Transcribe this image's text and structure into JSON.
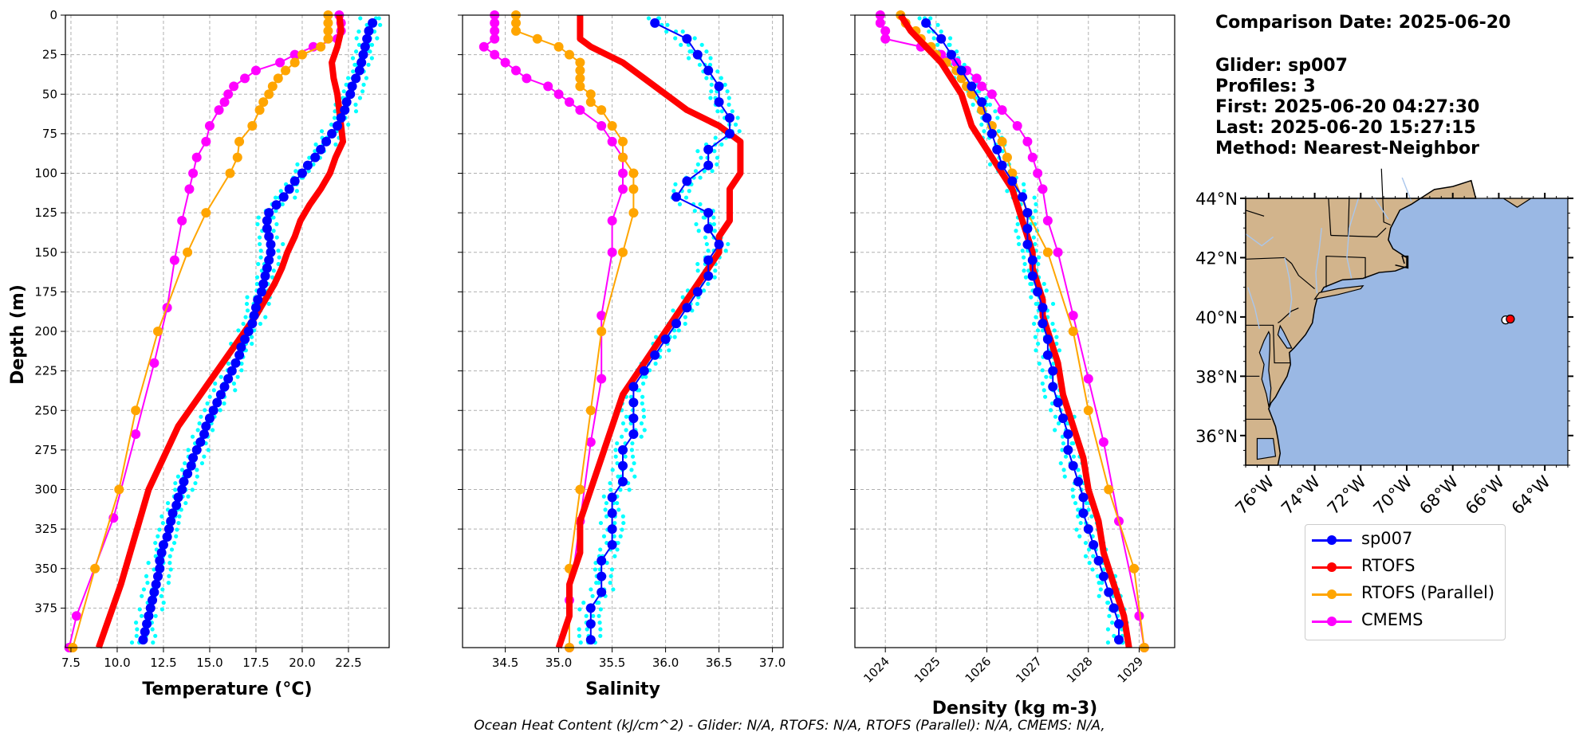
{
  "info": {
    "comparison_date": "Comparison Date: 2025-06-20",
    "glider": "Glider: sp007",
    "profiles": "Profiles: 3",
    "first": "First: 2025-06-20 04:27:30",
    "last": "Last: 2025-06-20 15:27:15",
    "method": "Method: Nearest-Neighbor"
  },
  "footer": "Ocean Heat Content (kJ/cm^2) - Glider: N/A,  RTOFS: N/A,  RTOFS (Parallel): N/A,  CMEMS: N/A,",
  "legend": [
    {
      "label": "sp007",
      "color": "#0000ff"
    },
    {
      "label": "RTOFS",
      "color": "#ff0000"
    },
    {
      "label": "RTOFS (Parallel)",
      "color": "#ffa500"
    },
    {
      "label": "CMEMS",
      "color": "#ff00ff"
    }
  ],
  "colors": {
    "glider": "#0000ff",
    "glider_raw": "#00ffff",
    "rtofs": "#ff0000",
    "rtofs_parallel": "#ffa500",
    "cmems": "#ff00ff",
    "land": "#d2b48c",
    "ocean": "#9ab8e4"
  },
  "chart_data": [
    {
      "type": "line",
      "xlabel": "Temperature (°C)",
      "ylabel": "Depth (m)",
      "xlim": [
        7.2,
        24.7
      ],
      "ylim": [
        400,
        0
      ],
      "xticks": [
        "7.5",
        "10.0",
        "12.5",
        "15.0",
        "17.5",
        "20.0",
        "22.5"
      ],
      "yticks": [
        "0",
        "25",
        "50",
        "75",
        "100",
        "125",
        "150",
        "175",
        "200",
        "225",
        "250",
        "275",
        "300",
        "325",
        "350",
        "375"
      ],
      "grid": true,
      "series": [
        {
          "name": "sp007",
          "depth": [
            5,
            10,
            15,
            20,
            25,
            30,
            35,
            40,
            45,
            50,
            55,
            60,
            65,
            70,
            75,
            80,
            85,
            90,
            95,
            100,
            105,
            110,
            115,
            120,
            125,
            130,
            135,
            140,
            145,
            150,
            155,
            160,
            165,
            170,
            175,
            180,
            185,
            190,
            195,
            200,
            205,
            210,
            215,
            220,
            225,
            230,
            235,
            240,
            245,
            250,
            255,
            260,
            265,
            270,
            275,
            280,
            285,
            290,
            295,
            300,
            305,
            310,
            315,
            320,
            325,
            330,
            335,
            340,
            345,
            350,
            355,
            360,
            365,
            370,
            375,
            380,
            385,
            390,
            395
          ],
          "values": [
            23.8,
            23.6,
            23.5,
            23.4,
            23.3,
            23.2,
            23.1,
            22.9,
            22.7,
            22.6,
            22.4,
            22.3,
            22.1,
            21.9,
            21.6,
            21.3,
            21.0,
            20.7,
            20.3,
            20.0,
            19.6,
            19.3,
            19.0,
            18.6,
            18.2,
            18.1,
            18.1,
            18.2,
            18.3,
            18.3,
            18.2,
            18.1,
            18.0,
            17.9,
            17.8,
            17.6,
            17.5,
            17.4,
            17.3,
            17.1,
            16.9,
            16.7,
            16.6,
            16.4,
            16.2,
            16.0,
            15.8,
            15.6,
            15.4,
            15.2,
            15.0,
            14.8,
            14.7,
            14.5,
            14.3,
            14.1,
            14.0,
            13.8,
            13.6,
            13.5,
            13.3,
            13.2,
            13.0,
            12.9,
            12.8,
            12.7,
            12.5,
            12.4,
            12.3,
            12.3,
            12.2,
            12.1,
            12.0,
            11.9,
            11.8,
            11.7,
            11.6,
            11.5,
            11.4
          ]
        },
        {
          "name": "RTOFS",
          "depth": [
            0,
            10,
            20,
            30,
            40,
            50,
            60,
            70,
            80,
            90,
            100,
            110,
            120,
            130,
            140,
            150,
            160,
            170,
            180,
            190,
            200,
            220,
            240,
            260,
            280,
            300,
            320,
            340,
            360,
            380,
            400
          ],
          "values": [
            22.0,
            22.1,
            21.9,
            21.6,
            21.7,
            21.9,
            22.0,
            22.1,
            22.2,
            21.8,
            21.5,
            21.0,
            20.4,
            19.9,
            19.6,
            19.2,
            18.9,
            18.5,
            18.0,
            17.5,
            16.9,
            15.7,
            14.5,
            13.3,
            12.5,
            11.7,
            11.2,
            10.7,
            10.2,
            9.6,
            9.0
          ]
        },
        {
          "name": "RTOFS (Parallel)",
          "depth": [
            0,
            5,
            10,
            15,
            20,
            25,
            30,
            35,
            40,
            45,
            50,
            55,
            60,
            70,
            80,
            90,
            100,
            125,
            150,
            200,
            250,
            300,
            350,
            400
          ],
          "values": [
            21.4,
            21.4,
            21.4,
            21.4,
            21.0,
            20.0,
            19.6,
            19.1,
            18.7,
            18.4,
            18.2,
            17.9,
            17.7,
            17.3,
            16.6,
            16.5,
            16.1,
            14.8,
            13.8,
            12.2,
            11.0,
            10.1,
            8.8,
            7.6
          ]
        },
        {
          "name": "CMEMS",
          "depth": [
            0,
            5,
            10,
            15,
            20,
            25,
            30,
            35,
            40,
            45,
            50,
            55,
            60,
            70,
            80,
            90,
            100,
            110,
            130,
            155,
            185,
            220,
            265,
            318,
            380,
            400
          ],
          "values": [
            22.0,
            22.1,
            22.1,
            21.9,
            20.6,
            19.6,
            18.8,
            17.5,
            16.9,
            16.3,
            16.0,
            15.8,
            15.5,
            15.0,
            14.8,
            14.3,
            14.1,
            13.9,
            13.5,
            13.1,
            12.7,
            12.0,
            11.0,
            9.8,
            7.8,
            7.4
          ]
        }
      ]
    },
    {
      "type": "line",
      "xlabel": "Salinity",
      "xlim": [
        34.1,
        37.1
      ],
      "ylim": [
        400,
        0
      ],
      "xticks": [
        "34.5",
        "35.0",
        "35.5",
        "36.0",
        "36.5",
        "37.0"
      ],
      "grid": true,
      "series": [
        {
          "name": "sp007",
          "depth": [
            5,
            15,
            25,
            35,
            45,
            55,
            65,
            75,
            85,
            95,
            105,
            115,
            125,
            135,
            145,
            155,
            165,
            175,
            185,
            195,
            205,
            215,
            225,
            235,
            245,
            255,
            265,
            275,
            285,
            295,
            305,
            315,
            325,
            335,
            345,
            355,
            365,
            375,
            385,
            395
          ],
          "values": [
            35.9,
            36.2,
            36.3,
            36.4,
            36.5,
            36.5,
            36.6,
            36.6,
            36.4,
            36.4,
            36.2,
            36.1,
            36.4,
            36.4,
            36.5,
            36.4,
            36.4,
            36.3,
            36.2,
            36.1,
            36.0,
            35.9,
            35.8,
            35.7,
            35.7,
            35.7,
            35.7,
            35.6,
            35.6,
            35.6,
            35.5,
            35.5,
            35.5,
            35.5,
            35.4,
            35.4,
            35.4,
            35.3,
            35.3,
            35.3
          ]
        },
        {
          "name": "RTOFS",
          "depth": [
            0,
            10,
            15,
            20,
            30,
            40,
            50,
            60,
            70,
            80,
            90,
            100,
            110,
            120,
            130,
            140,
            150,
            160,
            170,
            180,
            190,
            200,
            220,
            240,
            260,
            280,
            300,
            320,
            340,
            360,
            380,
            400
          ],
          "values": [
            35.2,
            35.2,
            35.2,
            35.3,
            35.6,
            35.8,
            36.0,
            36.2,
            36.5,
            36.7,
            36.7,
            36.7,
            36.6,
            36.6,
            36.6,
            36.5,
            36.5,
            36.4,
            36.3,
            36.2,
            36.1,
            36.0,
            35.8,
            35.6,
            35.5,
            35.4,
            35.3,
            35.2,
            35.2,
            35.1,
            35.1,
            35.0
          ]
        },
        {
          "name": "RTOFS (Parallel)",
          "depth": [
            0,
            5,
            10,
            15,
            20,
            25,
            30,
            35,
            40,
            45,
            50,
            55,
            60,
            70,
            80,
            90,
            100,
            110,
            125,
            150,
            200,
            250,
            300,
            350,
            400
          ],
          "values": [
            34.6,
            34.6,
            34.6,
            34.8,
            35.0,
            35.1,
            35.2,
            35.2,
            35.2,
            35.2,
            35.3,
            35.3,
            35.4,
            35.5,
            35.6,
            35.6,
            35.7,
            35.7,
            35.7,
            35.6,
            35.4,
            35.3,
            35.2,
            35.1,
            35.1
          ]
        },
        {
          "name": "CMEMS",
          "depth": [
            0,
            5,
            10,
            15,
            20,
            25,
            30,
            35,
            40,
            45,
            50,
            55,
            60,
            70,
            80,
            90,
            100,
            110,
            130,
            150,
            190,
            230,
            270,
            320,
            370,
            400
          ],
          "values": [
            34.4,
            34.4,
            34.4,
            34.4,
            34.3,
            34.4,
            34.5,
            34.6,
            34.7,
            34.9,
            35.0,
            35.1,
            35.2,
            35.4,
            35.5,
            35.6,
            35.6,
            35.6,
            35.5,
            35.5,
            35.4,
            35.4,
            35.3,
            35.2,
            35.1,
            35.1
          ]
        }
      ]
    },
    {
      "type": "line",
      "xlabel": "Density (kg m-3)",
      "xlim": [
        1023.4,
        1029.7
      ],
      "ylim": [
        400,
        0
      ],
      "xticks": [
        "1024",
        "1025",
        "1026",
        "1027",
        "1028",
        "1029"
      ],
      "grid": true,
      "series": [
        {
          "name": "sp007",
          "depth": [
            5,
            15,
            25,
            35,
            45,
            55,
            65,
            75,
            85,
            95,
            105,
            115,
            125,
            135,
            145,
            155,
            165,
            175,
            185,
            195,
            205,
            215,
            225,
            235,
            245,
            255,
            265,
            275,
            285,
            295,
            305,
            315,
            325,
            335,
            345,
            355,
            365,
            375,
            385,
            395
          ],
          "values": [
            1024.8,
            1025.1,
            1025.3,
            1025.5,
            1025.7,
            1025.9,
            1026.0,
            1026.1,
            1026.2,
            1026.3,
            1026.5,
            1026.7,
            1026.8,
            1026.8,
            1026.8,
            1026.9,
            1026.9,
            1027.0,
            1027.1,
            1027.1,
            1027.2,
            1027.2,
            1027.3,
            1027.3,
            1027.4,
            1027.5,
            1027.6,
            1027.6,
            1027.7,
            1027.8,
            1027.9,
            1027.9,
            1028.0,
            1028.1,
            1028.2,
            1028.3,
            1028.4,
            1028.5,
            1028.6,
            1028.6
          ]
        },
        {
          "name": "RTOFS",
          "depth": [
            0,
            10,
            20,
            30,
            40,
            50,
            60,
            70,
            80,
            90,
            100,
            110,
            120,
            130,
            140,
            150,
            160,
            170,
            180,
            190,
            200,
            220,
            240,
            260,
            280,
            300,
            320,
            340,
            360,
            380,
            400
          ],
          "values": [
            1024.3,
            1024.5,
            1024.8,
            1025.1,
            1025.3,
            1025.5,
            1025.6,
            1025.7,
            1025.9,
            1026.1,
            1026.3,
            1026.5,
            1026.6,
            1026.7,
            1026.8,
            1026.9,
            1026.9,
            1027.0,
            1027.1,
            1027.1,
            1027.2,
            1027.4,
            1027.5,
            1027.7,
            1027.9,
            1028.0,
            1028.2,
            1028.3,
            1028.5,
            1028.7,
            1028.8
          ]
        },
        {
          "name": "RTOFS (Parallel)",
          "depth": [
            0,
            5,
            10,
            15,
            20,
            25,
            30,
            35,
            40,
            45,
            50,
            60,
            70,
            80,
            90,
            100,
            125,
            150,
            200,
            250,
            300,
            350,
            400
          ],
          "values": [
            1024.3,
            1024.4,
            1024.6,
            1024.7,
            1024.9,
            1025.0,
            1025.2,
            1025.4,
            1025.5,
            1025.6,
            1025.7,
            1025.9,
            1026.1,
            1026.3,
            1026.4,
            1026.5,
            1026.8,
            1027.2,
            1027.7,
            1028.0,
            1028.4,
            1028.9,
            1029.1
          ]
        },
        {
          "name": "CMEMS",
          "depth": [
            0,
            5,
            10,
            15,
            20,
            25,
            30,
            35,
            40,
            45,
            50,
            60,
            70,
            80,
            90,
            100,
            110,
            130,
            150,
            190,
            230,
            270,
            320,
            380,
            400
          ],
          "values": [
            1023.9,
            1023.9,
            1024.0,
            1024.0,
            1024.7,
            1025.1,
            1025.4,
            1025.6,
            1025.8,
            1025.9,
            1026.1,
            1026.3,
            1026.6,
            1026.8,
            1026.9,
            1027.0,
            1027.1,
            1027.2,
            1027.4,
            1027.7,
            1028.0,
            1028.3,
            1028.6,
            1029.0,
            1029.1
          ]
        }
      ]
    }
  ],
  "map": {
    "lon_ticks": [
      "76°W",
      "74°W",
      "72°W",
      "70°W",
      "68°W",
      "66°W",
      "64°W"
    ],
    "lat_ticks": [
      "44°N",
      "42°N",
      "40°N",
      "38°N",
      "36°N"
    ],
    "lon_range": [
      -77.0,
      -63.0
    ],
    "lat_range": [
      35.0,
      44.0
    ],
    "glider_position": {
      "lon": -65.7,
      "lat": 39.9
    },
    "rtofs_position": {
      "lon": -65.5,
      "lat": 39.93
    }
  }
}
